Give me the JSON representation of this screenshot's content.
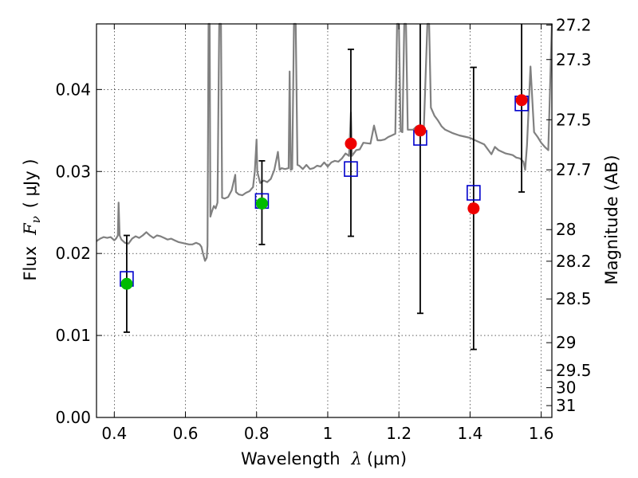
{
  "chart_data": {
    "type": "scatter",
    "xlabel": "Wavelength",
    "xlabel_math": "λ",
    "xlabel_unit": "(μm)",
    "ylabel": "Flux",
    "ylabel_math": "F",
    "ylabel_sub": "ν",
    "ylabel_unit": "( μJy )",
    "ylabel_right": "Magnitude (AB)",
    "xlim": [
      0.35,
      1.63
    ],
    "ylim": [
      0.0,
      0.048
    ],
    "grid": true,
    "grid_style": "dotted",
    "x_ticks": [
      0.4,
      0.6,
      0.8,
      1.0,
      1.2,
      1.4,
      1.6
    ],
    "x_tick_labels": [
      "0.4",
      "0.6",
      "0.8",
      "1",
      "1.2",
      "1.4",
      "1.6"
    ],
    "y_ticks": [
      0.0,
      0.01,
      0.02,
      0.03,
      0.04
    ],
    "y_tick_labels": [
      "0.00",
      "0.01",
      "0.02",
      "0.03",
      "0.04"
    ],
    "mag_ticks": [
      27.2,
      27.3,
      27.5,
      27.7,
      28,
      28.2,
      28.5,
      29,
      29.5,
      30,
      31
    ],
    "mag_tick_labels": [
      "27.2",
      "27.3",
      "27.5",
      "27.7",
      "28",
      "28.2",
      "28.5",
      "29",
      "29.5",
      "30",
      "31"
    ],
    "series": [
      {
        "marker": "line",
        "color": "#808080",
        "points": [
          [
            0.35,
            0.0215
          ],
          [
            0.36,
            0.0218
          ],
          [
            0.37,
            0.022
          ],
          [
            0.38,
            0.0219
          ],
          [
            0.39,
            0.022
          ],
          [
            0.4,
            0.0216
          ],
          [
            0.405,
            0.0218
          ],
          [
            0.41,
            0.0222
          ],
          [
            0.412,
            0.0262
          ],
          [
            0.415,
            0.0222
          ],
          [
            0.42,
            0.0217
          ],
          [
            0.43,
            0.0213
          ],
          [
            0.44,
            0.0212
          ],
          [
            0.45,
            0.0218
          ],
          [
            0.46,
            0.0221
          ],
          [
            0.47,
            0.0219
          ],
          [
            0.48,
            0.0222
          ],
          [
            0.49,
            0.0226
          ],
          [
            0.5,
            0.0222
          ],
          [
            0.51,
            0.0219
          ],
          [
            0.52,
            0.0222
          ],
          [
            0.53,
            0.0221
          ],
          [
            0.54,
            0.0219
          ],
          [
            0.55,
            0.0217
          ],
          [
            0.56,
            0.0218
          ],
          [
            0.57,
            0.0216
          ],
          [
            0.58,
            0.0214
          ],
          [
            0.59,
            0.0213
          ],
          [
            0.6,
            0.0212
          ],
          [
            0.61,
            0.0211
          ],
          [
            0.62,
            0.0211
          ],
          [
            0.63,
            0.0213
          ],
          [
            0.64,
            0.0211
          ],
          [
            0.645,
            0.0208
          ],
          [
            0.65,
            0.0199
          ],
          [
            0.655,
            0.0191
          ],
          [
            0.66,
            0.0195
          ],
          [
            0.662,
            0.021
          ],
          [
            0.665,
            0.048
          ],
          [
            0.668,
            0.048
          ],
          [
            0.67,
            0.0245
          ],
          [
            0.675,
            0.0252
          ],
          [
            0.68,
            0.0258
          ],
          [
            0.685,
            0.0255
          ],
          [
            0.69,
            0.0262
          ],
          [
            0.695,
            0.048
          ],
          [
            0.7,
            0.048
          ],
          [
            0.703,
            0.0268
          ],
          [
            0.71,
            0.0267
          ],
          [
            0.72,
            0.0269
          ],
          [
            0.73,
            0.0277
          ],
          [
            0.74,
            0.0296
          ],
          [
            0.742,
            0.0275
          ],
          [
            0.75,
            0.0272
          ],
          [
            0.76,
            0.0271
          ],
          [
            0.77,
            0.0274
          ],
          [
            0.78,
            0.0276
          ],
          [
            0.79,
            0.0281
          ],
          [
            0.795,
            0.03
          ],
          [
            0.8,
            0.0339
          ],
          [
            0.802,
            0.03
          ],
          [
            0.81,
            0.0286
          ],
          [
            0.82,
            0.0289
          ],
          [
            0.83,
            0.0287
          ],
          [
            0.84,
            0.0291
          ],
          [
            0.85,
            0.0302
          ],
          [
            0.86,
            0.0324
          ],
          [
            0.865,
            0.0302
          ],
          [
            0.87,
            0.0304
          ],
          [
            0.88,
            0.0303
          ],
          [
            0.89,
            0.0304
          ],
          [
            0.893,
            0.0422
          ],
          [
            0.896,
            0.0302
          ],
          [
            0.9,
            0.0303
          ],
          [
            0.905,
            0.048
          ],
          [
            0.91,
            0.048
          ],
          [
            0.915,
            0.0308
          ],
          [
            0.92,
            0.0307
          ],
          [
            0.93,
            0.0303
          ],
          [
            0.94,
            0.0308
          ],
          [
            0.95,
            0.0303
          ],
          [
            0.96,
            0.0304
          ],
          [
            0.97,
            0.0307
          ],
          [
            0.98,
            0.0306
          ],
          [
            0.99,
            0.0311
          ],
          [
            1.0,
            0.0306
          ],
          [
            1.01,
            0.0311
          ],
          [
            1.02,
            0.0313
          ],
          [
            1.03,
            0.0312
          ],
          [
            1.04,
            0.0316
          ],
          [
            1.05,
            0.0322
          ],
          [
            1.06,
            0.0319
          ],
          [
            1.065,
            0.0372
          ],
          [
            1.068,
            0.0319
          ],
          [
            1.08,
            0.0326
          ],
          [
            1.09,
            0.0327
          ],
          [
            1.1,
            0.0335
          ],
          [
            1.12,
            0.0334
          ],
          [
            1.13,
            0.0356
          ],
          [
            1.14,
            0.0338
          ],
          [
            1.15,
            0.0338
          ],
          [
            1.16,
            0.0339
          ],
          [
            1.17,
            0.0342
          ],
          [
            1.18,
            0.0344
          ],
          [
            1.19,
            0.0346
          ],
          [
            1.195,
            0.048
          ],
          [
            1.2,
            0.048
          ],
          [
            1.205,
            0.0349
          ],
          [
            1.21,
            0.0348
          ],
          [
            1.215,
            0.048
          ],
          [
            1.22,
            0.048
          ],
          [
            1.225,
            0.0351
          ],
          [
            1.24,
            0.0351
          ],
          [
            1.25,
            0.0355
          ],
          [
            1.26,
            0.0353
          ],
          [
            1.27,
            0.0351
          ],
          [
            1.28,
            0.048
          ],
          [
            1.285,
            0.048
          ],
          [
            1.29,
            0.0378
          ],
          [
            1.3,
            0.0368
          ],
          [
            1.31,
            0.0362
          ],
          [
            1.32,
            0.0355
          ],
          [
            1.33,
            0.0351
          ],
          [
            1.35,
            0.0347
          ],
          [
            1.37,
            0.0344
          ],
          [
            1.39,
            0.0342
          ],
          [
            1.4,
            0.0341
          ],
          [
            1.42,
            0.0337
          ],
          [
            1.44,
            0.0333
          ],
          [
            1.46,
            0.0321
          ],
          [
            1.47,
            0.033
          ],
          [
            1.48,
            0.0326
          ],
          [
            1.5,
            0.0322
          ],
          [
            1.51,
            0.0321
          ],
          [
            1.52,
            0.032
          ],
          [
            1.53,
            0.0317
          ],
          [
            1.54,
            0.0316
          ],
          [
            1.55,
            0.0312
          ],
          [
            1.555,
            0.0302
          ],
          [
            1.56,
            0.0332
          ],
          [
            1.57,
            0.0428
          ],
          [
            1.58,
            0.0348
          ],
          [
            1.59,
            0.0342
          ],
          [
            1.6,
            0.0335
          ],
          [
            1.61,
            0.033
          ],
          [
            1.62,
            0.0326
          ],
          [
            1.63,
            0.048
          ]
        ]
      },
      {
        "marker": "open-square",
        "color": "#0000cc",
        "points": [
          [
            0.435,
            0.0169
          ],
          [
            0.815,
            0.0264
          ],
          [
            1.065,
            0.0303
          ],
          [
            1.26,
            0.0341
          ],
          [
            1.41,
            0.0274
          ],
          [
            1.545,
            0.0383
          ]
        ]
      },
      {
        "marker": "filled-circle",
        "color": "#00bb00",
        "points": [
          [
            0.435,
            0.0163
          ],
          [
            0.815,
            0.0261
          ]
        ]
      },
      {
        "marker": "filled-circle",
        "color": "#ee0000",
        "points": [
          [
            1.065,
            0.0334
          ],
          [
            1.26,
            0.035
          ],
          [
            1.41,
            0.0255
          ],
          [
            1.545,
            0.0387
          ]
        ]
      },
      {
        "marker": "errorbar",
        "color": "#000000",
        "points": [
          [
            0.435,
            0.0104,
            0.0222
          ],
          [
            0.815,
            0.0211,
            0.0313
          ],
          [
            1.065,
            0.0221,
            0.0449
          ],
          [
            1.26,
            0.0127,
            0.048
          ],
          [
            1.41,
            0.0083,
            0.0427
          ],
          [
            1.545,
            0.0275,
            0.048
          ]
        ]
      }
    ]
  }
}
